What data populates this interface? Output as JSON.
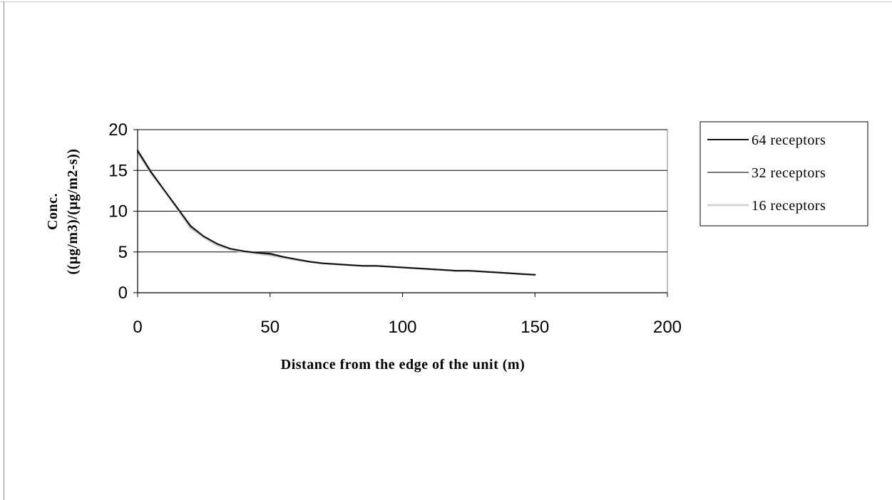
{
  "chart_data": {
    "type": "line",
    "title": "",
    "xlabel": "Distance from the edge of the unit (m)",
    "ylabel_line1": "Conc.",
    "ylabel_line2": "((µg/m3)/(µg/m2-s))",
    "xlim": [
      0,
      200
    ],
    "ylim": [
      0,
      20
    ],
    "xticks": [
      0,
      50,
      100,
      150,
      200
    ],
    "yticks": [
      0,
      5,
      10,
      15,
      20
    ],
    "grid": "horizontal",
    "legend_position": "right",
    "series": [
      {
        "name": "64 receptors",
        "color": "#111111",
        "x": [
          0,
          5,
          10,
          15,
          20,
          25,
          30,
          35,
          40,
          45,
          50,
          55,
          60,
          65,
          70,
          75,
          80,
          85,
          90,
          95,
          100,
          105,
          110,
          115,
          120,
          125,
          130,
          135,
          140,
          145,
          150
        ],
        "y": [
          17.4,
          14.8,
          12.6,
          10.4,
          8.2,
          6.9,
          6.0,
          5.4,
          5.1,
          4.9,
          4.8,
          4.4,
          4.1,
          3.8,
          3.6,
          3.5,
          3.4,
          3.3,
          3.3,
          3.2,
          3.1,
          3.0,
          2.9,
          2.8,
          2.7,
          2.7,
          2.6,
          2.5,
          2.4,
          2.3,
          2.2
        ]
      },
      {
        "name": "32 receptors",
        "color": "#777777",
        "x": [
          0,
          5,
          10,
          15,
          20,
          25,
          30,
          35,
          40,
          45,
          50,
          55,
          60,
          65,
          70,
          75,
          80,
          85,
          90,
          95,
          100,
          105,
          110,
          115,
          120,
          125,
          130,
          135,
          140,
          145,
          150
        ],
        "y": [
          17.5,
          14.9,
          12.6,
          10.4,
          8.1,
          6.9,
          6.0,
          5.4,
          5.1,
          4.9,
          4.7,
          4.4,
          4.1,
          3.8,
          3.6,
          3.5,
          3.4,
          3.3,
          3.3,
          3.2,
          3.1,
          3.0,
          2.9,
          2.8,
          2.7,
          2.7,
          2.6,
          2.5,
          2.4,
          2.3,
          2.2
        ]
      },
      {
        "name": "16 receptors",
        "color": "#d4d4d4",
        "x": [
          0,
          5,
          10,
          15,
          20,
          25,
          30,
          35,
          40,
          45,
          50,
          55,
          60,
          65,
          70,
          75,
          80,
          85,
          90,
          95,
          100,
          105,
          110,
          115,
          120,
          125,
          130,
          135,
          140,
          145,
          150
        ],
        "y": [
          17.2,
          14.7,
          12.5,
          10.3,
          7.9,
          6.8,
          5.8,
          5.3,
          5.0,
          4.8,
          4.6,
          4.3,
          4.0,
          3.8,
          3.6,
          3.5,
          3.4,
          3.3,
          3.3,
          3.2,
          3.1,
          3.0,
          2.9,
          2.8,
          2.7,
          2.7,
          2.6,
          2.5,
          2.4,
          2.3,
          2.2
        ]
      }
    ]
  }
}
